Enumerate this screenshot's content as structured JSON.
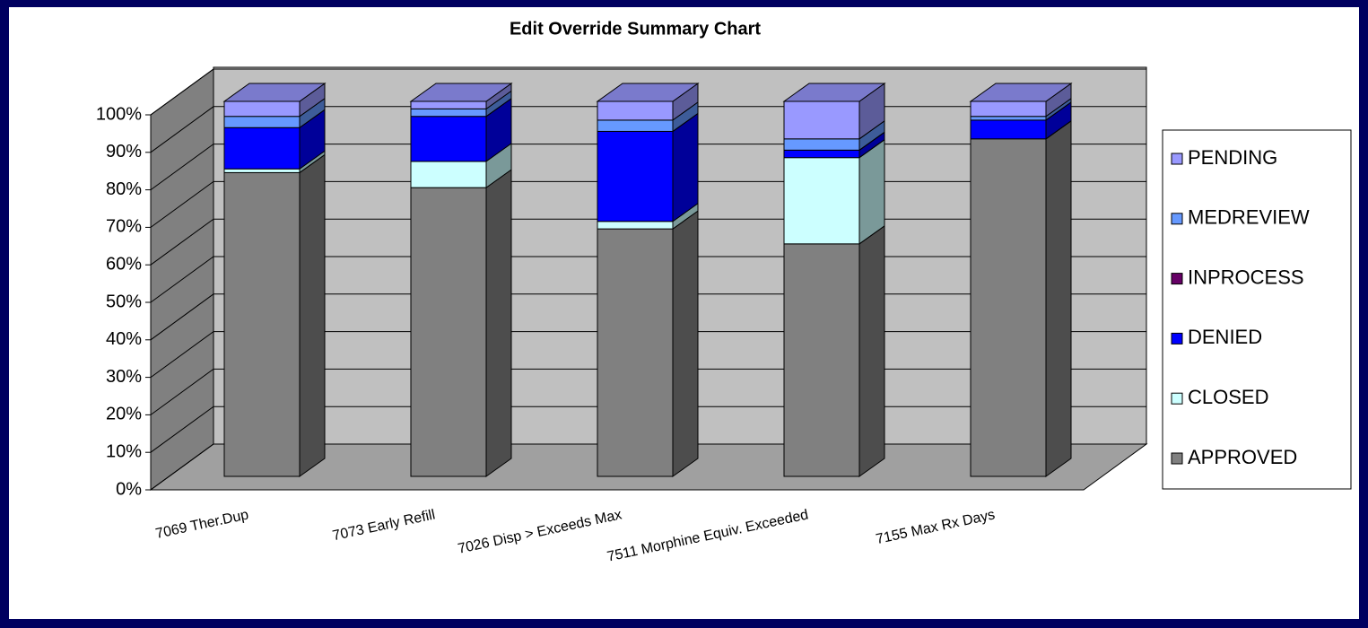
{
  "chart_data": {
    "type": "bar",
    "stacked": true,
    "title": "Edit Override Summary Chart",
    "categories": [
      "7069 Ther.Dup",
      "7073 Early Refill",
      "7026 Disp > Exceeds Max",
      "7511 Morphine Equiv. Exceeded",
      "7155 Max Rx Days"
    ],
    "series": [
      {
        "name": "APPROVED",
        "color": "#808080",
        "values": [
          81,
          77,
          66,
          62,
          90
        ]
      },
      {
        "name": "CLOSED",
        "color": "#ccffff",
        "values": [
          1,
          7,
          2,
          23,
          0
        ]
      },
      {
        "name": "DENIED",
        "color": "#0000ff",
        "values": [
          11,
          12,
          24,
          2,
          5
        ]
      },
      {
        "name": "INPROCESS",
        "color": "#660066",
        "values": [
          0,
          0,
          0,
          0,
          0
        ]
      },
      {
        "name": "MEDREVIEW",
        "color": "#6699ff",
        "values": [
          3,
          2,
          3,
          3,
          1
        ]
      },
      {
        "name": "PENDING",
        "color": "#9999ff",
        "values": [
          4,
          2,
          5,
          10,
          4
        ]
      }
    ],
    "ylim": [
      0,
      100
    ],
    "yticks": [
      {
        "value": 0,
        "label": "0%"
      },
      {
        "value": 10,
        "label": "10%"
      },
      {
        "value": 20,
        "label": "20%"
      },
      {
        "value": 30,
        "label": "30%"
      },
      {
        "value": 40,
        "label": "40%"
      },
      {
        "value": 50,
        "label": "50%"
      },
      {
        "value": 60,
        "label": "60%"
      },
      {
        "value": 70,
        "label": "70%"
      },
      {
        "value": 80,
        "label": "80%"
      },
      {
        "value": 90,
        "label": "90%"
      },
      {
        "value": 100,
        "label": "100%"
      }
    ],
    "grid": true,
    "legend": "right"
  }
}
